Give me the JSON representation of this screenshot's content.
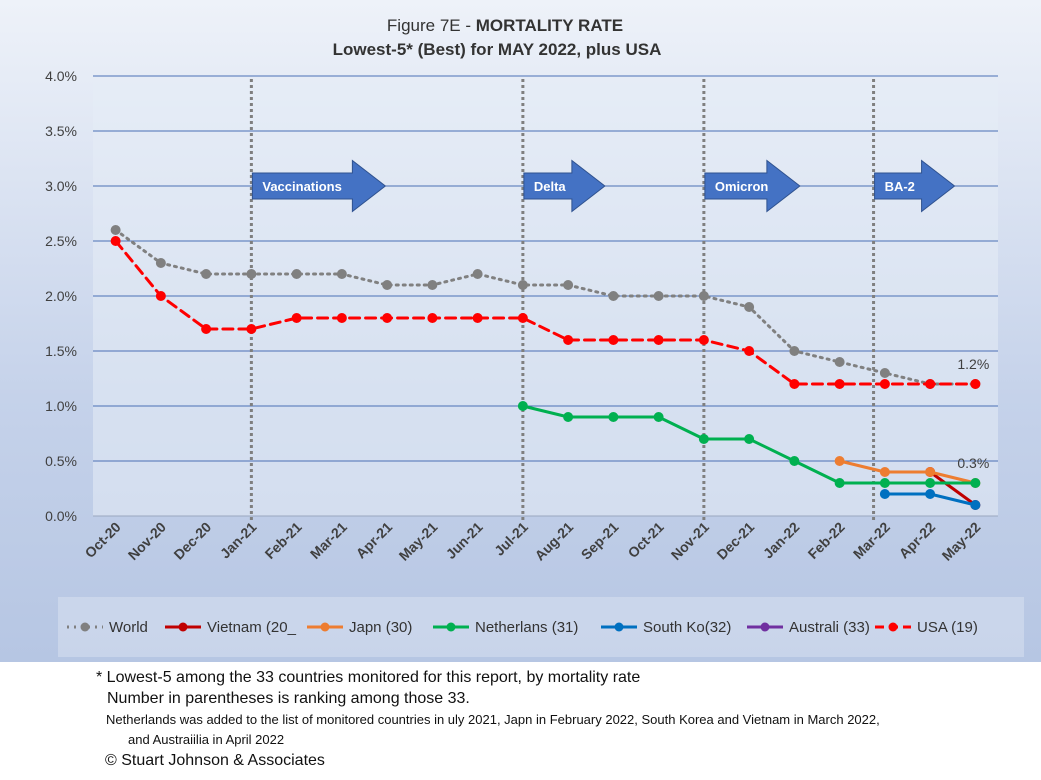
{
  "title": {
    "line1_prefix": "Figure 7E  - ",
    "line1_bold": "MORTALITY RATE",
    "line2": "Lowest-5* (Best) for MAY 2022, plus USA"
  },
  "chart_data": {
    "type": "line",
    "categories": [
      "Oct-20",
      "Nov-20",
      "Dec-20",
      "Jan-21",
      "Feb-21",
      "Mar-21",
      "Apr-21",
      "May-21",
      "Jun-21",
      "Jul-21",
      "Aug-21",
      "Sep-21",
      "Oct-21",
      "Nov-21",
      "Dec-21",
      "Jan-22",
      "Feb-22",
      "Mar-22",
      "Apr-22",
      "May-22"
    ],
    "y_ticks": [
      "0.0%",
      "0.5%",
      "1.0%",
      "1.5%",
      "2.0%",
      "2.5%",
      "3.0%",
      "3.5%",
      "4.0%"
    ],
    "ylim": [
      0,
      4.0
    ],
    "grid": true,
    "legend_position": "bottom",
    "series": [
      {
        "name": "World",
        "color": "#808080",
        "style": "dotted",
        "values": [
          2.6,
          2.3,
          2.2,
          2.2,
          2.2,
          2.2,
          2.1,
          2.1,
          2.2,
          2.1,
          2.1,
          2.0,
          2.0,
          2.0,
          1.9,
          1.5,
          1.4,
          1.3,
          1.2,
          1.2
        ]
      },
      {
        "name": "Vietnam (20_",
        "color": "#c00000",
        "style": "solid",
        "values": [
          null,
          null,
          null,
          null,
          null,
          null,
          null,
          null,
          null,
          null,
          null,
          null,
          null,
          null,
          null,
          null,
          null,
          null,
          0.4,
          0.1
        ]
      },
      {
        "name": "Japn (30)",
        "color": "#ed7d31",
        "style": "solid",
        "values": [
          null,
          null,
          null,
          null,
          null,
          null,
          null,
          null,
          null,
          null,
          null,
          null,
          null,
          null,
          null,
          null,
          0.5,
          0.4,
          0.4,
          0.3
        ]
      },
      {
        "name": "Netherlans (31)",
        "color": "#00b050",
        "style": "solid",
        "values": [
          null,
          null,
          null,
          null,
          null,
          null,
          null,
          null,
          null,
          1.0,
          0.9,
          0.9,
          0.9,
          0.7,
          0.7,
          0.5,
          0.3,
          0.3,
          0.3,
          0.3
        ]
      },
      {
        "name": "South Ko(32)",
        "color": "#0070c0",
        "style": "solid",
        "values": [
          null,
          null,
          null,
          null,
          null,
          null,
          null,
          null,
          null,
          null,
          null,
          null,
          null,
          null,
          null,
          null,
          null,
          0.2,
          0.2,
          0.1
        ]
      },
      {
        "name": "Australi (33)",
        "color": "#7030a0",
        "style": "solid",
        "values": [
          null,
          null,
          null,
          null,
          null,
          null,
          null,
          null,
          null,
          null,
          null,
          null,
          null,
          null,
          null,
          null,
          null,
          null,
          null,
          null
        ]
      },
      {
        "name": "USA (19)",
        "color": "#ff0000",
        "style": "dashed",
        "values": [
          2.5,
          2.0,
          1.7,
          1.7,
          1.8,
          1.8,
          1.8,
          1.8,
          1.8,
          1.8,
          1.6,
          1.6,
          1.6,
          1.6,
          1.5,
          1.2,
          1.2,
          1.2,
          1.2,
          1.2
        ]
      }
    ],
    "markers": [
      {
        "label": "Vaccinations",
        "index": 3
      },
      {
        "label": "Delta",
        "index": 9
      },
      {
        "label": "Omicron",
        "index": 13
      },
      {
        "label": "BA-2",
        "index": 16.75
      }
    ],
    "end_labels": [
      {
        "text": "1.2%",
        "value": 1.2
      },
      {
        "text": "0.3%",
        "value": 0.3
      }
    ],
    "colors": {
      "arrow": "#4472c4",
      "gridline": "#4a6fb5",
      "vline": "#7f7f7f"
    }
  },
  "footnotes": [
    "* Lowest-5 among the 33 countries monitored for this report, by mortality rate",
    "Number in parentheses is ranking among those 33.",
    "Netherlands was added to the list of monitored countries in uly 2021, Japn in February 2022, South Korea and Vietnam in March 2022,",
    "and Austraiilia in April 2022",
    "© Stuart Johnson & Associates"
  ]
}
